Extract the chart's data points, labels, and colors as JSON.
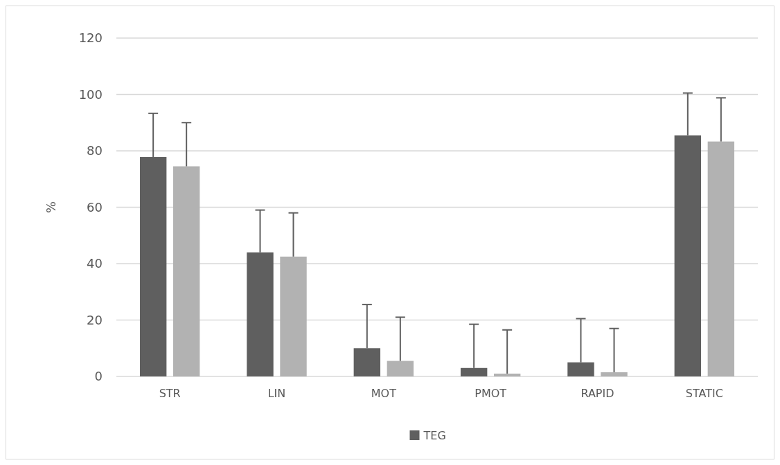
{
  "chart_data": {
    "type": "bar",
    "ylabel": "%",
    "categories": [
      "STR",
      "LIN",
      "MOT",
      "PMOT",
      "RAPID",
      "STATIC"
    ],
    "series": [
      {
        "name": "TEG",
        "color": "#5f5f5f",
        "values": [
          77.8,
          44,
          10,
          3,
          5,
          85.5
        ],
        "errors": [
          15.5,
          15,
          15.5,
          15.5,
          15.5,
          15
        ]
      },
      {
        "color": "#b2b2b2",
        "values": [
          74.5,
          42.5,
          5.5,
          1,
          1.5,
          83.3
        ],
        "errors": [
          15.5,
          15.5,
          15.5,
          15.5,
          15.5,
          15.5
        ]
      }
    ],
    "ylim": [
      0,
      120
    ],
    "yticks": [
      0,
      20,
      40,
      60,
      80,
      100,
      120
    ],
    "grid": "y",
    "legend": "bottom"
  }
}
